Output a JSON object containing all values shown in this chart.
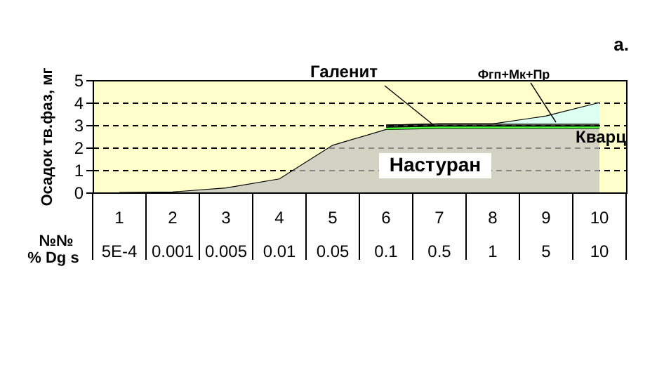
{
  "chart_data": {
    "type": "area",
    "stacked": true,
    "ylabel": "Осадок тв.фаз, мг",
    "categories": [
      "1",
      "2",
      "3",
      "4",
      "5",
      "6",
      "7",
      "8",
      "9",
      "10"
    ],
    "series": [
      {
        "name": "Настуран",
        "color": "#c0c0c0",
        "values": [
          0,
          0.02,
          0.2,
          0.6,
          2.1,
          2.8,
          2.85,
          2.85,
          2.85,
          2.85
        ]
      },
      {
        "name": "Галенит",
        "color": "#00ff00",
        "values": [
          null,
          null,
          null,
          null,
          null,
          0.1,
          0.1,
          0.1,
          0.1,
          0.1
        ]
      },
      {
        "name": "Фгп+Мк+Пр",
        "color": "#000000",
        "values": [
          null,
          null,
          null,
          null,
          null,
          0.1,
          0.1,
          0.1,
          0.1,
          0.1
        ]
      },
      {
        "name": "Кварц",
        "color": "#ccffff",
        "values": [
          null,
          null,
          null,
          null,
          null,
          0,
          0,
          0,
          0.35,
          0.95
        ]
      }
    ],
    "ylim": [
      0,
      5
    ],
    "yticks": [
      0,
      1,
      2,
      3,
      4,
      5
    ],
    "grid": "y",
    "annotations": [
      "а.",
      "№№",
      "% Dg s",
      "5E-4",
      "0.001",
      "0.005",
      "0.01",
      "0.05",
      "0.1",
      "0.5",
      "1",
      "5",
      "10"
    ]
  }
}
